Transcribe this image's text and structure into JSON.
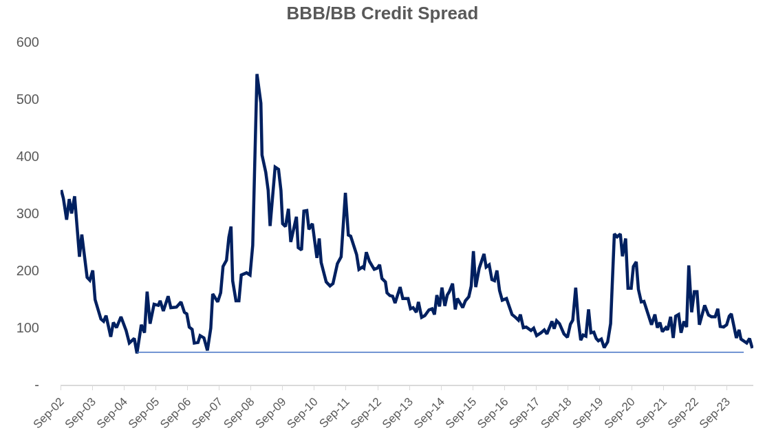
{
  "chart_data": {
    "type": "line",
    "title": "BBB/BB Credit Spread",
    "xlim": [
      "2002-09-01",
      "2024-07-04"
    ],
    "xticks": [
      {
        "value": "2002-09-01",
        "label": "Sep-02"
      },
      {
        "value": "2003-09-01",
        "label": "Sep-03"
      },
      {
        "value": "2004-09-01",
        "label": "Sep-04"
      },
      {
        "value": "2005-09-01",
        "label": "Sep-05"
      },
      {
        "value": "2006-09-01",
        "label": "Sep-06"
      },
      {
        "value": "2007-09-01",
        "label": "Sep-07"
      },
      {
        "value": "2008-09-01",
        "label": "Sep-08"
      },
      {
        "value": "2009-09-01",
        "label": "Sep-09"
      },
      {
        "value": "2010-09-01",
        "label": "Sep-10"
      },
      {
        "value": "2011-09-01",
        "label": "Sep-11"
      },
      {
        "value": "2012-09-01",
        "label": "Sep-12"
      },
      {
        "value": "2013-09-01",
        "label": "Sep-13"
      },
      {
        "value": "2014-09-01",
        "label": "Sep-14"
      },
      {
        "value": "2015-09-01",
        "label": "Sep-15"
      },
      {
        "value": "2016-09-01",
        "label": "Sep-16"
      },
      {
        "value": "2017-09-01",
        "label": "Sep-17"
      },
      {
        "value": "2018-09-01",
        "label": "Sep-18"
      },
      {
        "value": "2019-09-01",
        "label": "Sep-19"
      },
      {
        "value": "2020-09-01",
        "label": "Sep-20"
      },
      {
        "value": "2021-09-01",
        "label": "Sep-21"
      },
      {
        "value": "2022-09-01",
        "label": "Sep-22"
      },
      {
        "value": "2023-09-01",
        "label": "Sep-23"
      }
    ],
    "ylim": [
      0,
      600
    ],
    "yticks": [
      {
        "value": 0,
        "label": "-"
      },
      100,
      200,
      300,
      400,
      500,
      600
    ],
    "series": [
      {
        "color": "#002060",
        "x": [
          "2002-09-09",
          "2002-10-04",
          "2002-11-10",
          "2002-12-10",
          "2003-01-07",
          "2003-02-10",
          "2003-04-07",
          "2003-05-04",
          "2003-07-04",
          "2003-08-04",
          "2003-09-07",
          "2003-10-04",
          "2003-12-10",
          "2004-01-10",
          "2004-02-07",
          "2004-04-01",
          "2004-05-01",
          "2004-06-07",
          "2004-07-28",
          "2004-09-25",
          "2004-11-01",
          "2004-12-28",
          "2005-01-28",
          "2005-03-19",
          "2005-04-25",
          "2005-05-25",
          "2005-06-28",
          "2005-08-13",
          "2005-10-01",
          "2005-10-22",
          "2005-11-28",
          "2006-01-22",
          "2006-02-22",
          "2006-04-28",
          "2006-06-19",
          "2006-07-28",
          "2006-08-25",
          "2006-09-22",
          "2006-10-25",
          "2006-11-19",
          "2007-01-01",
          "2007-01-25",
          "2007-03-10",
          "2007-04-19",
          "2007-05-28",
          "2007-06-19",
          "2007-08-16",
          "2007-09-19",
          "2007-10-16",
          "2007-11-25",
          "2007-12-22",
          "2008-01-16",
          "2008-02-04",
          "2008-03-13",
          "2008-04-16",
          "2008-05-13",
          "2008-07-13",
          "2008-08-22",
          "2008-09-22",
          "2008-11-10",
          "2008-12-25",
          "2009-01-07",
          "2009-02-19",
          "2009-03-19",
          "2009-04-10",
          "2009-06-07",
          "2009-07-16",
          "2009-08-13",
          "2009-09-01",
          "2009-10-04",
          "2009-11-07",
          "2009-12-04",
          "2010-02-07",
          "2010-02-28",
          "2010-04-07",
          "2010-05-04",
          "2010-06-07",
          "2010-07-01",
          "2010-08-10",
          "2010-10-01",
          "2010-10-28",
          "2010-11-19",
          "2011-01-16",
          "2011-03-01",
          "2011-04-04",
          "2011-05-25",
          "2011-07-07",
          "2011-08-25",
          "2011-09-28",
          "2011-10-25",
          "2012-01-01",
          "2012-01-28",
          "2012-03-07",
          "2012-03-25",
          "2012-04-22",
          "2012-05-28",
          "2012-07-22",
          "2012-08-25",
          "2012-09-22",
          "2012-10-19",
          "2012-11-28",
          "2012-12-16",
          "2013-01-19",
          "2013-02-19",
          "2013-03-19",
          "2013-05-16",
          "2013-06-16",
          "2013-08-16",
          "2013-09-13",
          "2013-10-13",
          "2013-11-19",
          "2013-12-13",
          "2014-01-19",
          "2014-02-25",
          "2014-04-13",
          "2014-05-19",
          "2014-06-16",
          "2014-07-13",
          "2014-08-13",
          "2014-09-10",
          "2014-10-13",
          "2014-11-10",
          "2014-12-04",
          "2015-01-10",
          "2015-02-10",
          "2015-03-07",
          "2015-05-07",
          "2015-06-07",
          "2015-07-16",
          "2015-08-13",
          "2015-09-07",
          "2015-10-04",
          "2015-11-13",
          "2016-01-07",
          "2016-02-01",
          "2016-03-07",
          "2016-04-07",
          "2016-05-07",
          "2016-06-04",
          "2016-07-04",
          "2016-08-04",
          "2016-09-22",
          "2016-11-25",
          "2017-01-04",
          "2017-02-07",
          "2017-03-01",
          "2017-04-04",
          "2017-05-07",
          "2017-07-01",
          "2017-08-01",
          "2017-09-04",
          "2017-10-25",
          "2017-12-01",
          "2018-01-01",
          "2018-02-28",
          "2018-03-25",
          "2018-04-22",
          "2018-05-25",
          "2018-07-16",
          "2018-08-25",
          "2018-09-28",
          "2018-10-25",
          "2018-11-28",
          "2018-12-28",
          "2019-01-25",
          "2019-02-22",
          "2019-03-25",
          "2019-04-25",
          "2019-05-22",
          "2019-06-25",
          "2019-07-22",
          "2019-08-16",
          "2019-09-19",
          "2019-10-22",
          "2019-12-01",
          "2020-01-04",
          "2020-02-16",
          "2020-03-19",
          "2020-04-25",
          "2020-05-19",
          "2020-06-25",
          "2020-07-22",
          "2020-08-28",
          "2020-09-22",
          "2020-10-25",
          "2020-11-19",
          "2020-12-22",
          "2021-01-22",
          "2021-04-19",
          "2021-05-28",
          "2021-06-25",
          "2021-07-25",
          "2021-08-22",
          "2021-10-01",
          "2021-10-22",
          "2021-11-25",
          "2021-12-25",
          "2022-01-22",
          "2022-02-25",
          "2022-03-25",
          "2022-04-28",
          "2022-05-28",
          "2022-06-22",
          "2022-07-25",
          "2022-08-25",
          "2022-09-25",
          "2022-10-22",
          "2022-12-22",
          "2023-02-04",
          "2023-03-10",
          "2023-04-22",
          "2023-05-22",
          "2023-06-19",
          "2023-07-28",
          "2023-09-01",
          "2023-10-01",
          "2023-10-25",
          "2023-12-22",
          "2024-01-22",
          "2024-02-13",
          "2024-04-19",
          "2024-05-22",
          "2024-06-22"
        ],
        "values": [
          341,
          326,
          289,
          325,
          300,
          330,
          224,
          263,
          188,
          183,
          200,
          149,
          115,
          111,
          121,
          84,
          109,
          100,
          119,
          95,
          73,
          81,
          55,
          105,
          91,
          163,
          107,
          141,
          139,
          147,
          129,
          155,
          135,
          136,
          145,
          127,
          124,
          101,
          97,
          73,
          74,
          86,
          82,
          60,
          99,
          159,
          145,
          161,
          207,
          218,
          258,
          277,
          182,
          147,
          147,
          192,
          196,
          192,
          244,
          544,
          493,
          402,
          372,
          340,
          278,
          381,
          377,
          340,
          282,
          277,
          308,
          250,
          294,
          240,
          236,
          304,
          305,
          272,
          282,
          222,
          256,
          214,
          180,
          173,
          177,
          212,
          224,
          336,
          262,
          260,
          228,
          202,
          206,
          204,
          232,
          216,
          202,
          204,
          210,
          186,
          180,
          161,
          156,
          155,
          143,
          171,
          151,
          151,
          133,
          135,
          127,
          145,
          118,
          121,
          131,
          133,
          123,
          157,
          137,
          170,
          138,
          157,
          163,
          177,
          132,
          151,
          135,
          147,
          154,
          173,
          234,
          171,
          204,
          229,
          206,
          210,
          184,
          182,
          200,
          165,
          148,
          151,
          123,
          118,
          113,
          123,
          100,
          101,
          95,
          99,
          86,
          91,
          96,
          89,
          111,
          98,
          112,
          107,
          89,
          83,
          106,
          113,
          170,
          111,
          78,
          87,
          85,
          132,
          91,
          92,
          81,
          77,
          80,
          65,
          75,
          107,
          264,
          259,
          264,
          225,
          256,
          169,
          169,
          207,
          215,
          167,
          145,
          146,
          105,
          123,
          100,
          109,
          93,
          100,
          96,
          119,
          82,
          120,
          123,
          91,
          111,
          101,
          209,
          127,
          163,
          163,
          105,
          139,
          122,
          119,
          119,
          133,
          102,
          101,
          105,
          120,
          124,
          82,
          96,
          80,
          73,
          81,
          64
        ]
      },
      {
        "color": "#4472c4",
        "x": [
          "2005-01-28",
          "2024-03-16"
        ],
        "values": [
          57,
          57
        ]
      }
    ]
  }
}
